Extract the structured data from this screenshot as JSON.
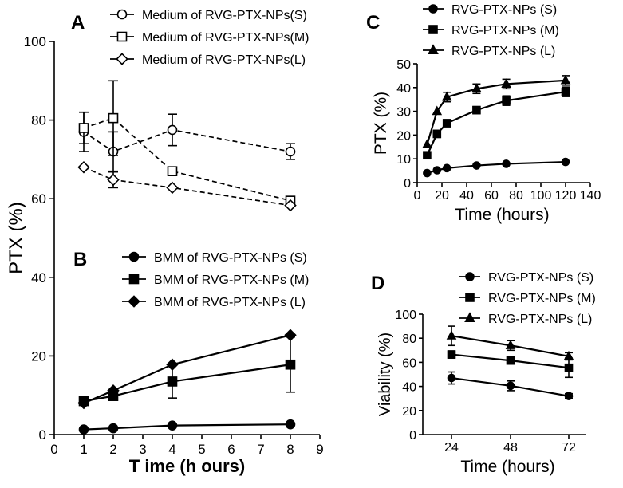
{
  "chart_data": [
    {
      "panel": "A",
      "type": "line",
      "line_style": "dashed",
      "x": [
        1,
        2,
        4,
        8
      ],
      "series": [
        {
          "name": "Medium of RVG-PTX-NPs(S)",
          "marker": "circle-open",
          "values": [
            77,
            72,
            77.5,
            72
          ],
          "err": [
            5,
            5,
            4,
            2
          ]
        },
        {
          "name": "Medium of RVG-PTX-NPs(M)",
          "marker": "square-open",
          "values": [
            78,
            80.5,
            67,
            59.5
          ],
          "err": [
            4,
            9.5,
            0,
            0
          ]
        },
        {
          "name": "Medium of RVG-PTX-NPs(L)",
          "marker": "diamond-open",
          "values": [
            68,
            64.8,
            62.8,
            58.3
          ],
          "err": [
            0,
            2,
            0,
            0
          ]
        }
      ],
      "legend": "top-right"
    },
    {
      "panel": "B",
      "type": "line",
      "x": [
        1,
        2,
        4,
        8
      ],
      "series": [
        {
          "name": "BMM of RVG-PTX-NPs (S)",
          "marker": "circle",
          "values": [
            1.3,
            1.6,
            2.3,
            2.6
          ],
          "err": [
            0,
            0,
            0,
            0
          ]
        },
        {
          "name": "BMM of RVG-PTX-NPs (M)",
          "marker": "square",
          "values": [
            8.5,
            9.8,
            13.5,
            17.8
          ],
          "err": [
            1,
            0.8,
            4.2,
            7
          ]
        },
        {
          "name": "BMM of RVG-PTX-NPs (L)",
          "marker": "diamond",
          "values": [
            8,
            11.2,
            17.8,
            25.3
          ],
          "err": [
            0,
            0,
            0,
            0
          ]
        }
      ],
      "legend": "top-right"
    },
    {
      "panels_ab_shared": true,
      "ylabel": "PTX (%)",
      "xlabel": "T ime  (h ours)",
      "xlim": [
        0,
        9
      ],
      "ylim": [
        0,
        100
      ],
      "xticks": [
        0,
        1,
        2,
        3,
        4,
        5,
        6,
        7,
        8,
        9
      ],
      "yticks": [
        0,
        20,
        40,
        60,
        80,
        100
      ]
    },
    {
      "panel": "C",
      "type": "line",
      "xlabel": "Time (hours)",
      "ylabel": "PTX (%)",
      "xlim": [
        0,
        140
      ],
      "ylim": [
        0,
        50
      ],
      "xticks": [
        0,
        20,
        40,
        60,
        80,
        100,
        120,
        140
      ],
      "yticks": [
        0,
        10,
        20,
        30,
        40,
        50
      ],
      "x": [
        8,
        16,
        24,
        48,
        72,
        120
      ],
      "series": [
        {
          "name": "RVG-PTX-NPs (S)",
          "marker": "circle",
          "values": [
            4,
            5.2,
            6.1,
            7.2,
            7.9,
            8.7
          ],
          "err": [
            0,
            0,
            0,
            0,
            0,
            0
          ]
        },
        {
          "name": "RVG-PTX-NPs (M)",
          "marker": "square",
          "values": [
            11.5,
            20.5,
            25,
            30.5,
            34.5,
            38.2
          ],
          "err": [
            0,
            1.5,
            1.5,
            1.5,
            2,
            2
          ]
        },
        {
          "name": "RVG-PTX-NPs (L)",
          "marker": "triangle",
          "values": [
            16,
            30,
            36,
            39.5,
            41.5,
            43
          ],
          "err": [
            0,
            0,
            2,
            2,
            2,
            2
          ]
        }
      ],
      "legend": "top-left"
    },
    {
      "panel": "D",
      "type": "line",
      "xlabel": "Time (hours)",
      "ylabel": "Viability (%)",
      "ylim": [
        0,
        100
      ],
      "yticks": [
        0,
        20,
        40,
        60,
        80,
        100
      ],
      "categories": [
        "24",
        "48",
        "72"
      ],
      "series": [
        {
          "name": "RVG-PTX-NPs (S)",
          "marker": "circle",
          "values": [
            47,
            40.5,
            32
          ],
          "err": [
            5,
            4,
            2
          ]
        },
        {
          "name": "RVG-PTX-NPs (M)",
          "marker": "square",
          "values": [
            66.5,
            61.5,
            55.5
          ],
          "err": [
            3,
            3,
            8
          ]
        },
        {
          "name": "RVG-PTX-NPs (L)",
          "marker": "triangle",
          "values": [
            82,
            74,
            65
          ],
          "err": [
            8,
            4,
            3
          ]
        }
      ],
      "legend": "top-left"
    }
  ]
}
